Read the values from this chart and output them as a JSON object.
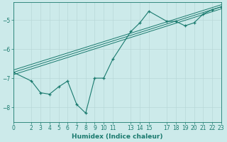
{
  "xlabel": "Humidex (Indice chaleur)",
  "ylabel": "",
  "bg_color": "#cceaea",
  "line_color": "#1a7a6e",
  "grid_color": "#b8d8d8",
  "xlim": [
    0,
    23
  ],
  "ylim": [
    -8.5,
    -4.4
  ],
  "xticks": [
    0,
    2,
    3,
    4,
    5,
    6,
    7,
    8,
    9,
    10,
    11,
    13,
    14,
    15,
    17,
    18,
    19,
    20,
    21,
    22,
    23
  ],
  "yticks": [
    -8,
    -7,
    -6,
    -5
  ],
  "series1_x": [
    0,
    2,
    3,
    4,
    5,
    6,
    7,
    8,
    9,
    10,
    11,
    13,
    14,
    15,
    17,
    18,
    19,
    20,
    21,
    22,
    23
  ],
  "series1_y": [
    -6.8,
    -7.1,
    -7.5,
    -7.55,
    -7.3,
    -7.1,
    -7.9,
    -8.2,
    -7.0,
    -7.0,
    -6.35,
    -5.4,
    -5.1,
    -4.7,
    -5.05,
    -5.05,
    -5.2,
    -5.1,
    -4.8,
    -4.65,
    -4.55
  ],
  "series2_x": [
    0,
    23
  ],
  "series2_y": [
    -6.8,
    -4.55
  ],
  "series3_x": [
    0,
    23
  ],
  "series3_y": [
    -6.72,
    -4.48
  ],
  "series4_x": [
    0,
    23
  ],
  "series4_y": [
    -6.88,
    -4.62
  ]
}
